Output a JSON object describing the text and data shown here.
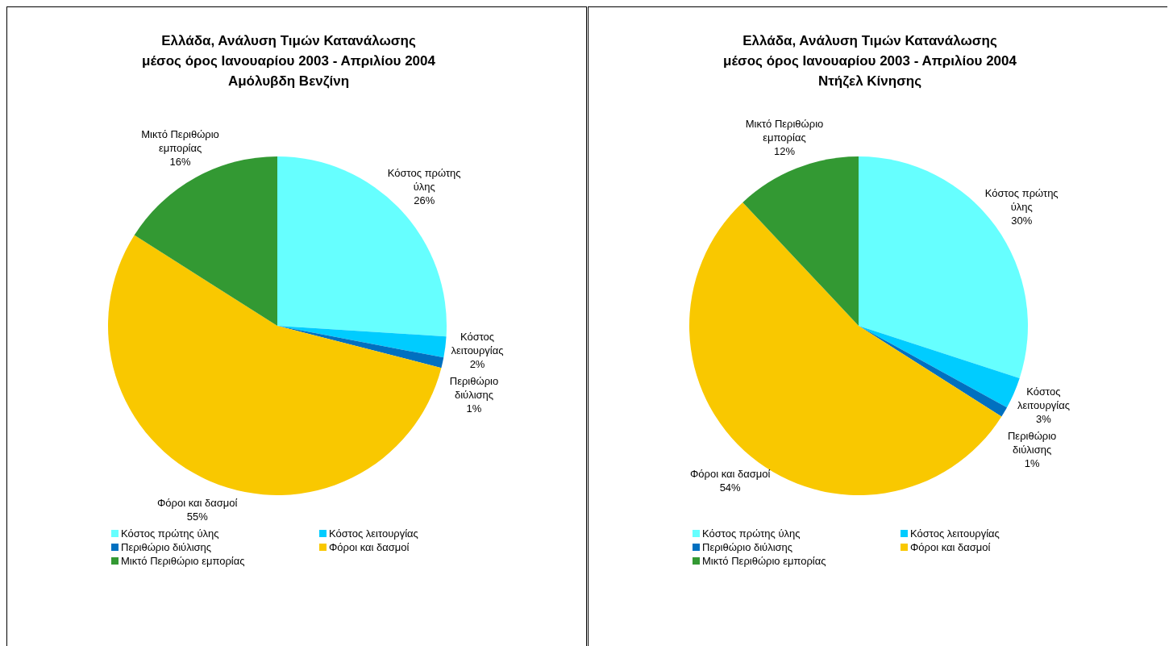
{
  "chart_data": [
    {
      "type": "pie",
      "title": "Ελλάδα, Ανάλυση Τιμών Κατανάλωσης\nμέσος όρος Ιανουαρίου 2003 - Απριλίου 2004\nΑμόλυβδη Βενζίνη",
      "categories": [
        "Κόστος πρώτης ύλης",
        "Κόστος λειτουργίας",
        "Περιθώριο διύλισης",
        "Φόροι και δασμοί",
        "Μικτό Περιθώριο εμπορίας"
      ],
      "values": [
        26,
        2,
        1,
        55,
        16
      ],
      "value_labels": [
        "26%",
        "2%",
        "1%",
        "55%",
        "16%"
      ],
      "colors": [
        "#66ffff",
        "#00ccff",
        "#0070c0",
        "#f9c800",
        "#339933"
      ],
      "legend": "bottom"
    },
    {
      "type": "pie",
      "title": "Ελλάδα, Ανάλυση Τιμών Κατανάλωσης\nμέσος όρος Ιανουαρίου 2003 - Απριλίου 2004\nΝτήζελ Κίνησης",
      "categories": [
        "Κόστος πρώτης ύλης",
        "Κόστος λειτουργίας",
        "Περιθώριο διύλισης",
        "Φόροι και δασμοί",
        "Μικτό Περιθώριο εμπορίας"
      ],
      "values": [
        30,
        3,
        1,
        54,
        12
      ],
      "value_labels": [
        "30%",
        "3%",
        "1%",
        "54%",
        "12%"
      ],
      "colors": [
        "#66ffff",
        "#00ccff",
        "#0070c0",
        "#f9c800",
        "#339933"
      ],
      "legend": "bottom"
    }
  ]
}
